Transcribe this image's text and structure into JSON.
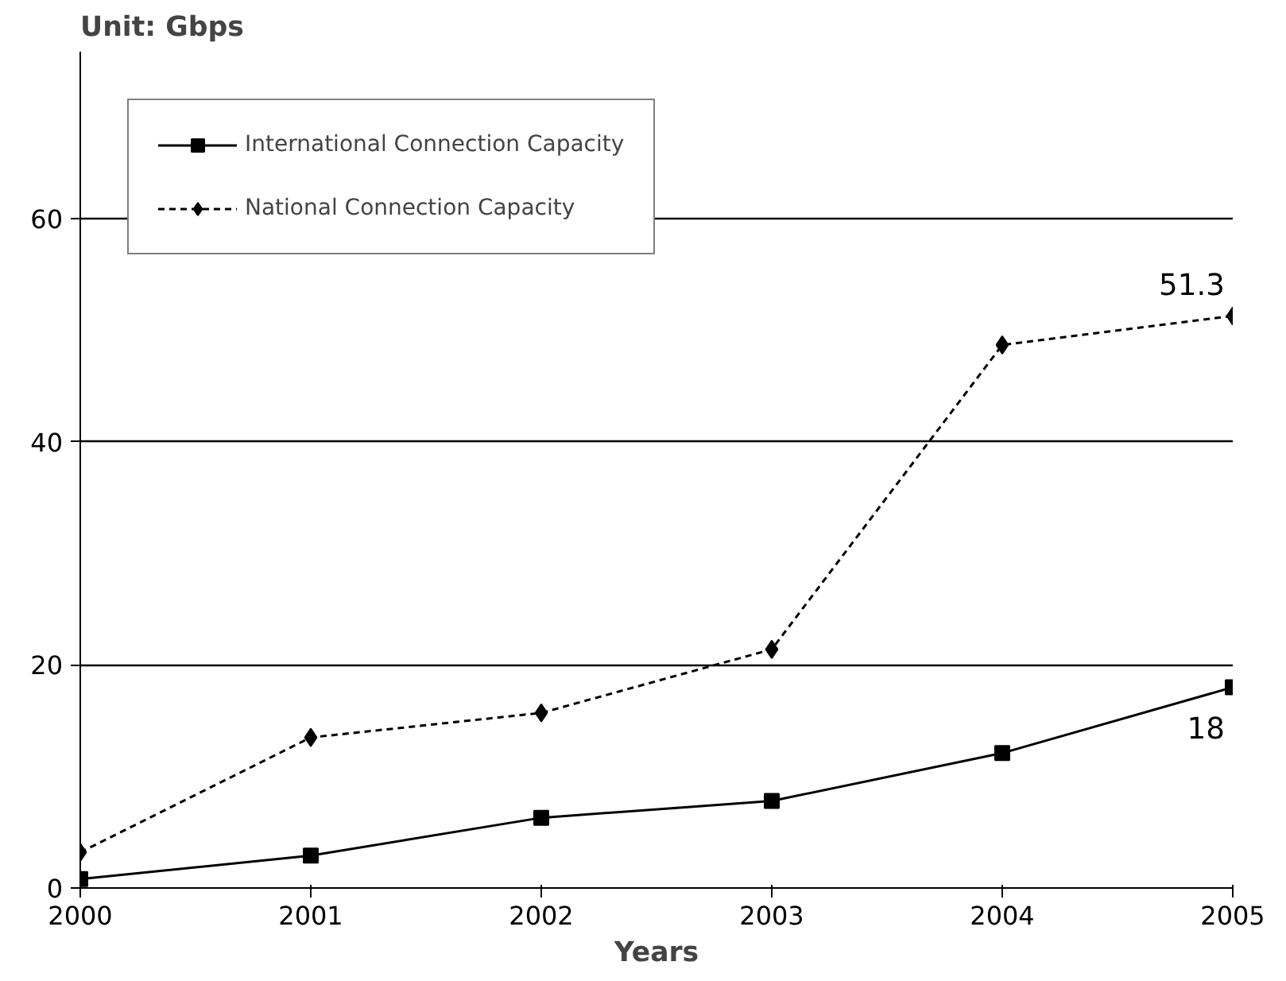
{
  "chart_data": {
    "type": "line",
    "title": "Unit: Gbps",
    "xlabel": "Years",
    "x": [
      2000,
      2001,
      2002,
      2003,
      2004,
      2005
    ],
    "series": [
      {
        "name": "International Connection Capacity",
        "color": "#000000",
        "marker": "square",
        "line_style": "solid",
        "values": [
          0.8,
          2.9,
          6.3,
          7.8,
          12.1,
          18
        ]
      },
      {
        "name": "National Connection Capacity",
        "color": "#000000",
        "marker": "diamond",
        "line_style": "dashed",
        "values": [
          3.2,
          13.5,
          15.7,
          21.4,
          48.7,
          51.3
        ]
      }
    ],
    "annotations": [
      {
        "text": "51.3",
        "x": 2005,
        "y": 51.3
      },
      {
        "text": "18",
        "x": 2005,
        "y": 18
      }
    ],
    "xlim": [
      2000,
      2005
    ],
    "ylim": [
      0,
      75
    ],
    "xticks": [
      2000,
      2001,
      2002,
      2003,
      2004,
      2005
    ],
    "yticks": [
      0,
      20,
      40,
      60
    ],
    "grid": "y",
    "legend": "top left"
  }
}
